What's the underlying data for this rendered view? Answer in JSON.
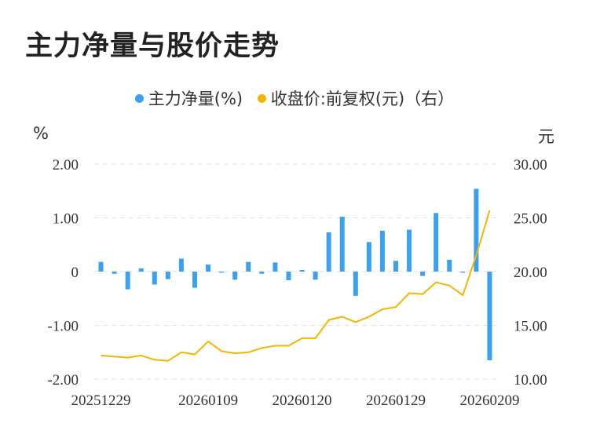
{
  "title": "主力净量与股价走势",
  "legend": {
    "items": [
      {
        "label": "主力净量(%)",
        "color": "#3aa0f0"
      },
      {
        "label": "收盘价:前复权(元)（右）",
        "color": "#f5b400"
      }
    ]
  },
  "units": {
    "left": "%",
    "right": "元"
  },
  "chart_data": {
    "type": "bar",
    "x": [
      "20251229",
      "20251230",
      "20251231",
      "20260102",
      "20260105",
      "20260106",
      "20260107",
      "20260108",
      "20260109",
      "20260112",
      "20260113",
      "20260114",
      "20260115",
      "20260116",
      "20260119",
      "20260120",
      "20260121",
      "20260122",
      "20260123",
      "20260126",
      "20260127",
      "20260128",
      "20260129",
      "20260130",
      "20260202",
      "20260203",
      "20260204",
      "20260205",
      "20260206",
      "20260209"
    ],
    "x_tick_labels": [
      "20251229",
      "20260109",
      "20260120",
      "20260129",
      "20260209"
    ],
    "series": [
      {
        "name": "主力净量(%)",
        "type": "bar",
        "axis": "left",
        "color": "#3aa0f0",
        "values": [
          0.18,
          -0.04,
          -0.33,
          0.06,
          -0.24,
          -0.14,
          0.24,
          -0.3,
          0.13,
          -0.02,
          -0.15,
          0.18,
          -0.04,
          0.17,
          -0.16,
          0.03,
          -0.15,
          0.73,
          1.02,
          -0.45,
          0.55,
          0.76,
          0.2,
          0.78,
          -0.08,
          1.09,
          0.22,
          -0.02,
          1.54,
          -1.65
        ]
      },
      {
        "name": "收盘价:前复权(元)（右）",
        "type": "line",
        "axis": "right",
        "color": "#f5b400",
        "values": [
          12.2,
          12.1,
          12.0,
          12.2,
          11.8,
          11.7,
          12.5,
          12.3,
          13.5,
          12.6,
          12.4,
          12.5,
          12.9,
          13.1,
          13.1,
          13.8,
          13.8,
          15.5,
          15.8,
          15.3,
          15.8,
          16.5,
          16.7,
          18.0,
          17.9,
          19.0,
          18.7,
          17.8,
          21.5,
          25.7
        ]
      }
    ],
    "y_left": {
      "ticks": [
        "2.00",
        "1.00",
        "0",
        "-1.00",
        "-2.00"
      ],
      "min": -2,
      "max": 2
    },
    "y_right": {
      "ticks": [
        "30.00",
        "25.00",
        "20.00",
        "15.00",
        "10.00"
      ],
      "min": 10,
      "max": 30
    },
    "grid": true,
    "legend_position": "top-center"
  }
}
